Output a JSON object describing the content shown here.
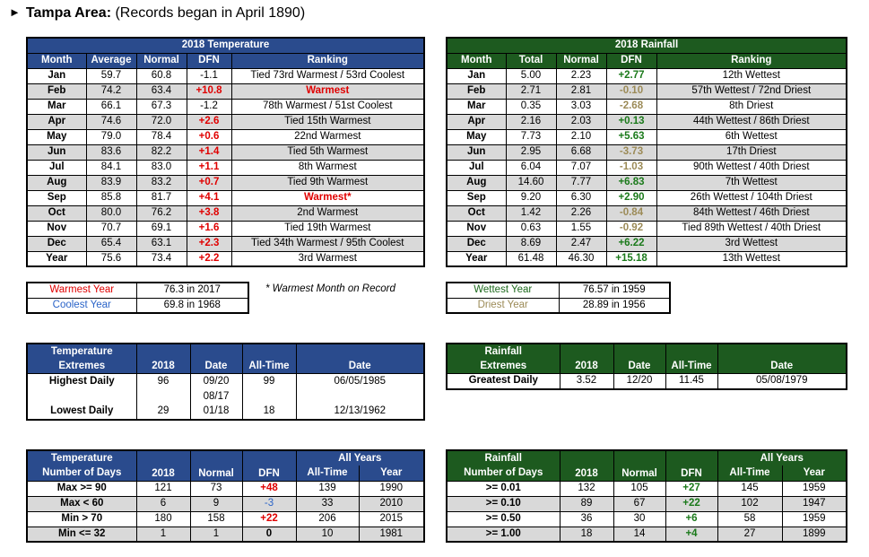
{
  "title": {
    "bold": "Tampa Area:",
    "rest": " (Records began in April 1890)"
  },
  "temperature": {
    "caption": "2018 Temperature",
    "headers": [
      "Month",
      "Average",
      "Normal",
      "DFN",
      "Ranking"
    ],
    "rows": [
      {
        "month": "Jan",
        "avg": "59.7",
        "normal": "60.8",
        "dfn": "-1.1",
        "rank": "Tied 73rd Warmest / 53rd Coolest"
      },
      {
        "month": "Feb",
        "avg": "74.2",
        "normal": "63.4",
        "dfn": "+10.8",
        "rank": "Warmest"
      },
      {
        "month": "Mar",
        "avg": "66.1",
        "normal": "67.3",
        "dfn": "-1.2",
        "rank": "78th Warmest / 51st Coolest"
      },
      {
        "month": "Apr",
        "avg": "74.6",
        "normal": "72.0",
        "dfn": "+2.6",
        "rank": "Tied 15th Warmest"
      },
      {
        "month": "May",
        "avg": "79.0",
        "normal": "78.4",
        "dfn": "+0.6",
        "rank": "22nd Warmest"
      },
      {
        "month": "Jun",
        "avg": "83.6",
        "normal": "82.2",
        "dfn": "+1.4",
        "rank": "Tied 5th Warmest"
      },
      {
        "month": "Jul",
        "avg": "84.1",
        "normal": "83.0",
        "dfn": "+1.1",
        "rank": "8th Warmest"
      },
      {
        "month": "Aug",
        "avg": "83.9",
        "normal": "83.2",
        "dfn": "+0.7",
        "rank": "Tied 9th Warmest"
      },
      {
        "month": "Sep",
        "avg": "85.8",
        "normal": "81.7",
        "dfn": "+4.1",
        "rank": "Warmest*"
      },
      {
        "month": "Oct",
        "avg": "80.0",
        "normal": "76.2",
        "dfn": "+3.8",
        "rank": "2nd Warmest"
      },
      {
        "month": "Nov",
        "avg": "70.7",
        "normal": "69.1",
        "dfn": "+1.6",
        "rank": "Tied 19th Warmest"
      },
      {
        "month": "Dec",
        "avg": "65.4",
        "normal": "63.1",
        "dfn": "+2.3",
        "rank": "Tied 34th Warmest / 95th Coolest"
      },
      {
        "month": "Year",
        "avg": "75.6",
        "normal": "73.4",
        "dfn": "+2.2",
        "rank": "3rd Warmest"
      }
    ],
    "warmest_year_label": "Warmest Year",
    "warmest_year_value": "76.3 in 2017",
    "coolest_year_label": "Coolest Year",
    "coolest_year_value": "69.8 in 1968",
    "note": "* Warmest Month on Record"
  },
  "rainfall": {
    "caption": "2018 Rainfall",
    "headers": [
      "Month",
      "Total",
      "Normal",
      "DFN",
      "Ranking"
    ],
    "rows": [
      {
        "month": "Jan",
        "total": "5.00",
        "normal": "2.23",
        "dfn": "+2.77",
        "rank": "12th Wettest"
      },
      {
        "month": "Feb",
        "total": "2.71",
        "normal": "2.81",
        "dfn": "-0.10",
        "rank": "57th Wettest / 72nd Driest"
      },
      {
        "month": "Mar",
        "total": "0.35",
        "normal": "3.03",
        "dfn": "-2.68",
        "rank": "8th Driest"
      },
      {
        "month": "Apr",
        "total": "2.16",
        "normal": "2.03",
        "dfn": "+0.13",
        "rank": "44th Wettest / 86th Driest"
      },
      {
        "month": "May",
        "total": "7.73",
        "normal": "2.10",
        "dfn": "+5.63",
        "rank": "6th Wettest"
      },
      {
        "month": "Jun",
        "total": "2.95",
        "normal": "6.68",
        "dfn": "-3.73",
        "rank": "17th Driest"
      },
      {
        "month": "Jul",
        "total": "6.04",
        "normal": "7.07",
        "dfn": "-1.03",
        "rank": "90th Wettest / 40th Driest"
      },
      {
        "month": "Aug",
        "total": "14.60",
        "normal": "7.77",
        "dfn": "+6.83",
        "rank": "7th Wettest"
      },
      {
        "month": "Sep",
        "total": "9.20",
        "normal": "6.30",
        "dfn": "+2.90",
        "rank": "26th Wettest / 104th Driest"
      },
      {
        "month": "Oct",
        "total": "1.42",
        "normal": "2.26",
        "dfn": "-0.84",
        "rank": "84th Wettest / 46th Driest"
      },
      {
        "month": "Nov",
        "total": "0.63",
        "normal": "1.55",
        "dfn": "-0.92",
        "rank": "Tied 89th Wettest / 40th Driest"
      },
      {
        "month": "Dec",
        "total": "8.69",
        "normal": "2.47",
        "dfn": "+6.22",
        "rank": "3rd Wettest"
      },
      {
        "month": "Year",
        "total": "61.48",
        "normal": "46.30",
        "dfn": "+15.18",
        "rank": "13th Wettest"
      }
    ],
    "wettest_year_label": "Wettest Year",
    "wettest_year_value": "76.57 in 1959",
    "driest_year_label": "Driest Year",
    "driest_year_value": "28.89 in 1956"
  },
  "temp_extremes": {
    "h1": "Temperature",
    "h2": "Extremes",
    "c2018": "2018",
    "cdate": "Date",
    "calltime": "All-Time",
    "cdate2": "Date",
    "high_label": "Highest Daily",
    "high_2018": "96",
    "high_date_a": "09/20",
    "high_date_b": "08/17",
    "high_alltime": "99",
    "high_alltime_date": "06/05/1985",
    "low_label": "Lowest Daily",
    "low_2018": "29",
    "low_date": "01/18",
    "low_alltime": "18",
    "low_alltime_date": "12/13/1962"
  },
  "rain_extremes": {
    "h1": "Rainfall",
    "h2": "Extremes",
    "c2018": "2018",
    "cdate": "Date",
    "calltime": "All-Time",
    "cdate2": "Date",
    "label": "Greatest Daily",
    "v2018": "3.52",
    "date": "12/20",
    "alltime": "11.45",
    "alltime_date": "05/08/1979"
  },
  "temp_days": {
    "h1": "Temperature",
    "h2": "Number of Days",
    "c2018": "2018",
    "cnormal": "Normal",
    "cdfn": "DFN",
    "allyears": "All Years",
    "calltime": "All-Time",
    "cyear": "Year",
    "rows": [
      {
        "label": "Max >= 90",
        "v2018": "121",
        "normal": "73",
        "dfn": "+48",
        "alltime": "139",
        "year": "1990"
      },
      {
        "label": "Max < 60",
        "v2018": "6",
        "normal": "9",
        "dfn": "-3",
        "alltime": "33",
        "year": "2010"
      },
      {
        "label": "Min > 70",
        "v2018": "180",
        "normal": "158",
        "dfn": "+22",
        "alltime": "206",
        "year": "2015"
      },
      {
        "label": "Min <= 32",
        "v2018": "1",
        "normal": "1",
        "dfn": "0",
        "alltime": "10",
        "year": "1981"
      }
    ]
  },
  "rain_days": {
    "h1": "Rainfall",
    "h2": "Number of Days",
    "c2018": "2018",
    "cnormal": "Normal",
    "cdfn": "DFN",
    "allyears": "All Years",
    "calltime": "All-Time",
    "cyear": "Year",
    "rows": [
      {
        "label": ">= 0.01",
        "v2018": "132",
        "normal": "105",
        "dfn": "+27",
        "alltime": "145",
        "year": "1959"
      },
      {
        "label": ">= 0.10",
        "v2018": "89",
        "normal": "67",
        "dfn": "+22",
        "alltime": "102",
        "year": "1947"
      },
      {
        "label": ">= 0.50",
        "v2018": "36",
        "normal": "30",
        "dfn": "+6",
        "alltime": "58",
        "year": "1959"
      },
      {
        "label": ">= 1.00",
        "v2018": "18",
        "normal": "14",
        "dfn": "+4",
        "alltime": "27",
        "year": "1899"
      }
    ]
  },
  "colors": {
    "blue_header": "#2a4b8d",
    "green_header": "#1d5a1f",
    "red": "#e00000",
    "green_text": "#1b7a1b",
    "tan_text": "#9c8b57",
    "shade": "#d9d9d9"
  }
}
